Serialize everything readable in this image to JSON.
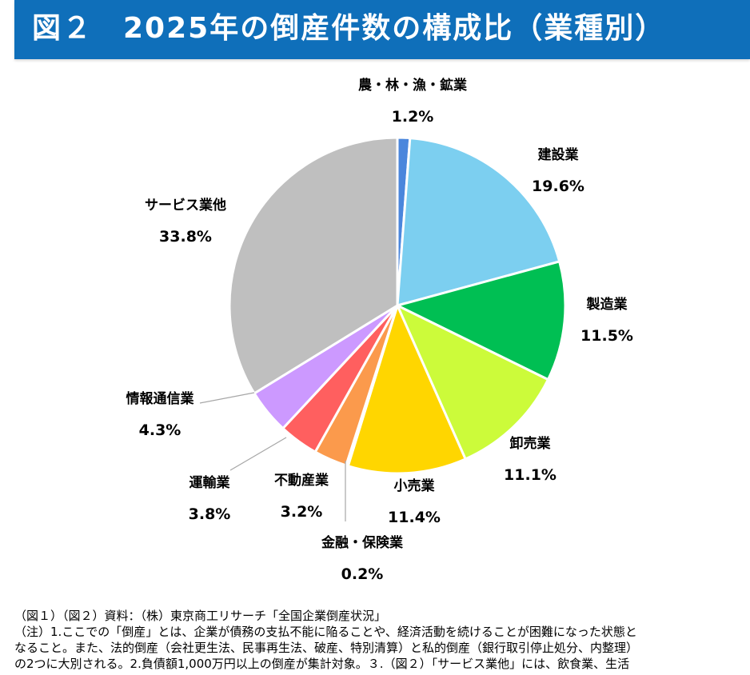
{
  "title": "図２　2025年の倒産件数の構成比（業種別）",
  "colors": {
    "title_bar": "#0f6fba",
    "title_text": "#ffffff"
  },
  "chart_data": {
    "type": "pie",
    "start_angle_deg": 0,
    "direction": "clockwise",
    "slice_border": "#ffffff",
    "slices": [
      {
        "label": "農・林・漁・鉱業",
        "value": 1.2,
        "pct_text": "1.2%",
        "color": "#4a86dc"
      },
      {
        "label": "建設業",
        "value": 19.6,
        "pct_text": "19.6%",
        "color": "#7ccff0"
      },
      {
        "label": "製造業",
        "value": 11.5,
        "pct_text": "11.5%",
        "color": "#00bf53"
      },
      {
        "label": "卸売業",
        "value": 11.1,
        "pct_text": "11.1%",
        "color": "#ccfb3a"
      },
      {
        "label": "小売業",
        "value": 11.4,
        "pct_text": "11.4%",
        "color": "#ffd600"
      },
      {
        "label": "金融・保険業",
        "value": 0.2,
        "pct_text": "0.2%",
        "color": "#2f6aa8"
      },
      {
        "label": "不動産業",
        "value": 3.2,
        "pct_text": "3.2%",
        "color": "#fb9a4c"
      },
      {
        "label": "運輸業",
        "value": 3.8,
        "pct_text": "3.8%",
        "color": "#ff5f5f"
      },
      {
        "label": "情報通信業",
        "value": 4.3,
        "pct_text": "4.3%",
        "color": "#cc99ff"
      },
      {
        "label": "サービス業他",
        "value": 33.8,
        "pct_text": "33.8%",
        "color": "#bfbfbf"
      }
    ]
  },
  "notes": [
    "（図１）（図２）資料：（株）東京商工リサーチ「全国企業倒産状況」",
    "（注）1.ここでの「倒産」とは、企業が債務の支払不能に陥ることや、経済活動を続けることが困難になった状態と",
    "なること。また、法的倒産（会社更生法、民事再生法、破産、特別清算）と私的倒産（銀行取引停止処分、内整理）",
    "の2つに大別される。2.負債額1,000万円以上の倒産が集計対象。３.（図２）「サービス業他」には、飲食業、生活"
  ]
}
